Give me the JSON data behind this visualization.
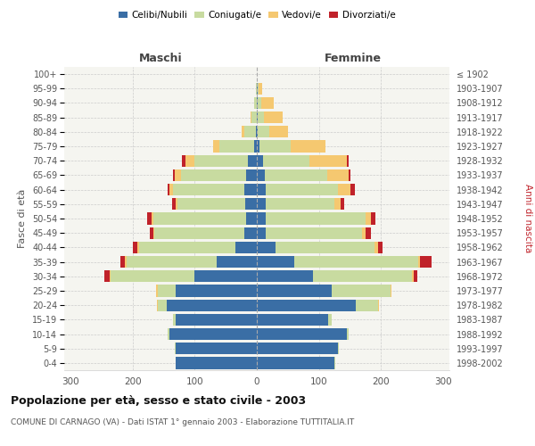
{
  "age_groups": [
    "0-4",
    "5-9",
    "10-14",
    "15-19",
    "20-24",
    "25-29",
    "30-34",
    "35-39",
    "40-44",
    "45-49",
    "50-54",
    "55-59",
    "60-64",
    "65-69",
    "70-74",
    "75-79",
    "80-84",
    "85-89",
    "90-94",
    "95-99",
    "100+"
  ],
  "birth_years": [
    "1998-2002",
    "1993-1997",
    "1988-1992",
    "1983-1987",
    "1978-1982",
    "1973-1977",
    "1968-1972",
    "1963-1967",
    "1958-1962",
    "1953-1957",
    "1948-1952",
    "1943-1947",
    "1938-1942",
    "1933-1937",
    "1928-1932",
    "1923-1927",
    "1918-1922",
    "1913-1917",
    "1908-1912",
    "1903-1907",
    "≤ 1902"
  ],
  "maschi": {
    "celibi": [
      130,
      130,
      140,
      130,
      145,
      130,
      100,
      65,
      35,
      20,
      17,
      18,
      20,
      17,
      15,
      5,
      2,
      0,
      0,
      0,
      0
    ],
    "coniugati": [
      1,
      2,
      3,
      5,
      15,
      30,
      135,
      145,
      155,
      145,
      150,
      110,
      115,
      105,
      85,
      55,
      18,
      8,
      4,
      1,
      0
    ],
    "vedovi": [
      0,
      0,
      0,
      0,
      1,
      2,
      2,
      2,
      2,
      2,
      2,
      3,
      5,
      10,
      15,
      10,
      5,
      2,
      0,
      0,
      0
    ],
    "divorziati": [
      0,
      0,
      0,
      0,
      0,
      0,
      8,
      8,
      8,
      5,
      8,
      5,
      3,
      3,
      5,
      0,
      0,
      0,
      0,
      0,
      0
    ]
  },
  "femmine": {
    "nubili": [
      125,
      130,
      145,
      115,
      160,
      120,
      90,
      60,
      30,
      15,
      15,
      15,
      15,
      13,
      10,
      5,
      2,
      2,
      2,
      1,
      0
    ],
    "coniugate": [
      1,
      2,
      3,
      5,
      35,
      95,
      160,
      200,
      160,
      155,
      160,
      110,
      115,
      100,
      75,
      50,
      18,
      10,
      5,
      2,
      0
    ],
    "vedove": [
      0,
      0,
      0,
      0,
      2,
      2,
      3,
      3,
      5,
      5,
      8,
      10,
      20,
      35,
      60,
      55,
      30,
      30,
      20,
      5,
      0
    ],
    "divorziate": [
      0,
      0,
      0,
      0,
      0,
      0,
      5,
      18,
      8,
      8,
      8,
      5,
      8,
      3,
      3,
      0,
      0,
      0,
      0,
      0,
      0
    ]
  },
  "colors": {
    "celibi": "#3a6ea5",
    "coniugati": "#c8dba0",
    "vedovi": "#f5c870",
    "divorziati": "#c0222a"
  },
  "xlim": 310,
  "title": "Popolazione per età, sesso e stato civile - 2003",
  "subtitle": "COMUNE DI CARNAGO (VA) - Dati ISTAT 1° gennaio 2003 - Elaborazione TUTTITALIA.IT",
  "ylabel_left": "Fasce di età",
  "ylabel_right": "Anni di nascita",
  "xlabel_maschi": "Maschi",
  "xlabel_femmine": "Femmine",
  "bg_color": "#ffffff",
  "plot_bg": "#f5f5f0",
  "grid_color": "#cccccc"
}
